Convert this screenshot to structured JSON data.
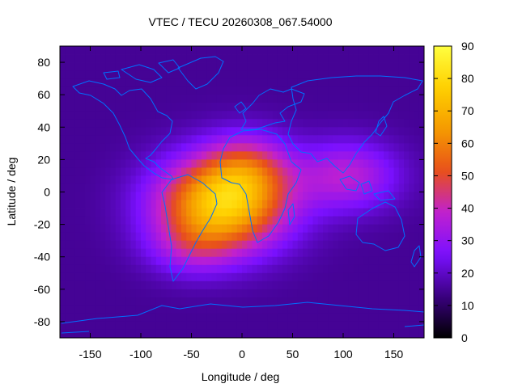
{
  "chart_data": {
    "type": "heatmap",
    "title": "VTEC / TECU 20260308_067.54000",
    "xlabel": "Longitude / deg",
    "ylabel": "Latitude / deg",
    "xlim": [
      -180,
      180
    ],
    "ylim": [
      -90,
      90
    ],
    "x_ticks": [
      -150,
      -100,
      -50,
      0,
      50,
      100,
      150
    ],
    "y_ticks": [
      -80,
      -60,
      -40,
      -20,
      0,
      20,
      40,
      60,
      80
    ],
    "colorbar": {
      "range": [
        0,
        90
      ],
      "ticks": [
        0,
        10,
        20,
        30,
        40,
        50,
        60,
        70,
        80,
        90
      ],
      "colormap": [
        "#000000",
        "#3a0080",
        "#7a10ff",
        "#c020d0",
        "#e8501a",
        "#f59a00",
        "#ffd000",
        "#ffff40"
      ],
      "legend": "right"
    },
    "field_model": {
      "background": 15,
      "peaks": [
        {
          "lon": -20,
          "lat": -8,
          "amp": 60,
          "sigma_lon": 45,
          "sigma_lat": 20
        },
        {
          "lon": 5,
          "lat": 15,
          "amp": 22,
          "sigma_lon": 30,
          "sigma_lat": 15
        },
        {
          "lon": 105,
          "lat": 10,
          "amp": 22,
          "sigma_lon": 35,
          "sigma_lat": 15
        },
        {
          "lon": -50,
          "lat": -35,
          "amp": 12,
          "sigma_lon": 30,
          "sigma_lat": 12
        }
      ]
    },
    "map_overlay": "world coastlines",
    "colors": {
      "coastline": "#0070ff",
      "frame": "#000000",
      "text": "#000000"
    }
  }
}
